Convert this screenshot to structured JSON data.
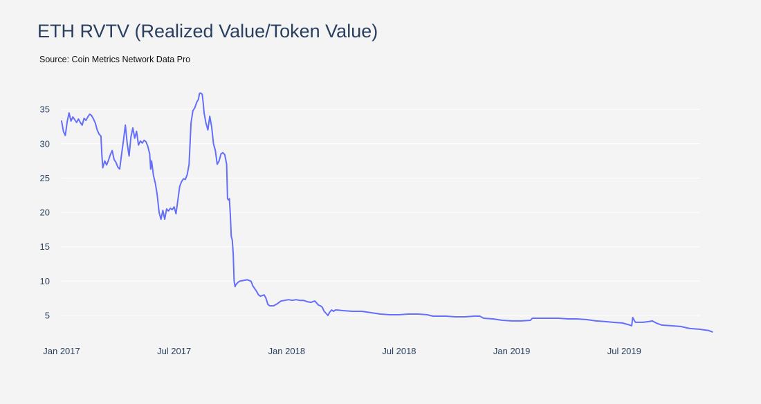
{
  "title": "ETH RVTV (Realized Value/Token Value)",
  "subtitle": "Source: Coin Metrics Network Data Pro",
  "colors": {
    "background": "#f4f4f4",
    "line": "#636efa",
    "grid": "#ffffff",
    "text": "#2a3f5f"
  },
  "chart_data": {
    "type": "line",
    "title": "ETH RVTV (Realized Value/Token Value)",
    "xlabel": "",
    "ylabel": "",
    "ylim": [
      2,
      38
    ],
    "xlim": [
      0,
      34.7
    ],
    "x_unit": "months since Jan 2017",
    "xticks": [
      {
        "x": 0,
        "label": "Jan 2017"
      },
      {
        "x": 6,
        "label": "Jul 2017"
      },
      {
        "x": 12,
        "label": "Jan 2018"
      },
      {
        "x": 18,
        "label": "Jul 2018"
      },
      {
        "x": 24,
        "label": "Jan 2019"
      },
      {
        "x": 30,
        "label": "Jul 2019"
      }
    ],
    "yticks": [
      {
        "y": 5,
        "label": "5"
      },
      {
        "y": 10,
        "label": "10"
      },
      {
        "y": 15,
        "label": "15"
      },
      {
        "y": 20,
        "label": "20"
      },
      {
        "y": 25,
        "label": "25"
      },
      {
        "y": 30,
        "label": "30"
      },
      {
        "y": 35,
        "label": "35"
      }
    ],
    "grid": true,
    "series": [
      {
        "name": "ETH RVTV",
        "points": [
          [
            0.0,
            33.3
          ],
          [
            0.1,
            31.8
          ],
          [
            0.2,
            31.2
          ],
          [
            0.3,
            33.2
          ],
          [
            0.4,
            34.5
          ],
          [
            0.5,
            33.3
          ],
          [
            0.6,
            33.9
          ],
          [
            0.7,
            33.5
          ],
          [
            0.8,
            33.1
          ],
          [
            0.9,
            33.6
          ],
          [
            1.0,
            33.1
          ],
          [
            1.1,
            32.7
          ],
          [
            1.2,
            33.7
          ],
          [
            1.3,
            33.4
          ],
          [
            1.4,
            33.9
          ],
          [
            1.5,
            34.3
          ],
          [
            1.6,
            34.1
          ],
          [
            1.7,
            33.6
          ],
          [
            1.8,
            33.0
          ],
          [
            1.9,
            32.0
          ],
          [
            2.0,
            31.4
          ],
          [
            2.1,
            31.1
          ],
          [
            2.15,
            28.3
          ],
          [
            2.2,
            26.5
          ],
          [
            2.3,
            27.5
          ],
          [
            2.4,
            26.9
          ],
          [
            2.5,
            27.6
          ],
          [
            2.6,
            28.4
          ],
          [
            2.7,
            29.0
          ],
          [
            2.8,
            27.7
          ],
          [
            2.9,
            27.3
          ],
          [
            3.0,
            26.6
          ],
          [
            3.1,
            26.3
          ],
          [
            3.2,
            28.5
          ],
          [
            3.3,
            30.5
          ],
          [
            3.4,
            32.7
          ],
          [
            3.5,
            30.0
          ],
          [
            3.6,
            28.2
          ],
          [
            3.7,
            31.0
          ],
          [
            3.8,
            32.3
          ],
          [
            3.9,
            30.8
          ],
          [
            4.0,
            31.8
          ],
          [
            4.1,
            29.8
          ],
          [
            4.2,
            30.4
          ],
          [
            4.3,
            30.1
          ],
          [
            4.4,
            30.5
          ],
          [
            4.5,
            30.3
          ],
          [
            4.6,
            29.6
          ],
          [
            4.7,
            28.5
          ],
          [
            4.75,
            26.3
          ],
          [
            4.8,
            27.5
          ],
          [
            4.9,
            25.4
          ],
          [
            5.0,
            24.2
          ],
          [
            5.1,
            22.5
          ],
          [
            5.2,
            20.0
          ],
          [
            5.3,
            19.0
          ],
          [
            5.4,
            20.3
          ],
          [
            5.5,
            19.0
          ],
          [
            5.6,
            20.5
          ],
          [
            5.7,
            20.2
          ],
          [
            5.8,
            20.6
          ],
          [
            5.9,
            20.4
          ],
          [
            6.0,
            20.8
          ],
          [
            6.1,
            19.8
          ],
          [
            6.2,
            21.8
          ],
          [
            6.3,
            23.8
          ],
          [
            6.4,
            24.5
          ],
          [
            6.5,
            24.9
          ],
          [
            6.6,
            24.8
          ],
          [
            6.7,
            25.5
          ],
          [
            6.8,
            27.0
          ],
          [
            6.9,
            33.0
          ],
          [
            7.0,
            34.8
          ],
          [
            7.1,
            35.2
          ],
          [
            7.2,
            36.0
          ],
          [
            7.3,
            36.5
          ],
          [
            7.35,
            37.3
          ],
          [
            7.4,
            37.4
          ],
          [
            7.5,
            37.2
          ],
          [
            7.55,
            36.0
          ],
          [
            7.6,
            34.5
          ],
          [
            7.7,
            33.0
          ],
          [
            7.8,
            32.0
          ],
          [
            7.9,
            34.0
          ],
          [
            8.0,
            32.5
          ],
          [
            8.1,
            30.0
          ],
          [
            8.2,
            29.0
          ],
          [
            8.3,
            27.0
          ],
          [
            8.4,
            27.5
          ],
          [
            8.5,
            28.5
          ],
          [
            8.6,
            28.7
          ],
          [
            8.7,
            28.4
          ],
          [
            8.8,
            27.0
          ],
          [
            8.85,
            22.0
          ],
          [
            8.9,
            21.8
          ],
          [
            8.95,
            22.0
          ],
          [
            9.0,
            19.5
          ],
          [
            9.05,
            16.5
          ],
          [
            9.1,
            16.0
          ],
          [
            9.15,
            14.0
          ],
          [
            9.2,
            10.0
          ],
          [
            9.25,
            9.2
          ],
          [
            9.3,
            9.5
          ],
          [
            9.4,
            9.8
          ],
          [
            9.5,
            10.0
          ],
          [
            9.7,
            10.1
          ],
          [
            9.9,
            10.2
          ],
          [
            10.1,
            10.0
          ],
          [
            10.2,
            9.3
          ],
          [
            10.4,
            8.5
          ],
          [
            10.5,
            8.0
          ],
          [
            10.6,
            7.8
          ],
          [
            10.7,
            7.9
          ],
          [
            10.8,
            8.0
          ],
          [
            10.9,
            7.5
          ],
          [
            11.0,
            6.6
          ],
          [
            11.1,
            6.4
          ],
          [
            11.3,
            6.4
          ],
          [
            11.5,
            6.7
          ],
          [
            11.7,
            7.1
          ],
          [
            11.9,
            7.2
          ],
          [
            12.1,
            7.3
          ],
          [
            12.3,
            7.2
          ],
          [
            12.5,
            7.3
          ],
          [
            12.7,
            7.2
          ],
          [
            12.9,
            7.2
          ],
          [
            13.1,
            7.0
          ],
          [
            13.3,
            6.9
          ],
          [
            13.5,
            7.1
          ],
          [
            13.6,
            6.8
          ],
          [
            13.7,
            6.5
          ],
          [
            13.8,
            6.4
          ],
          [
            13.9,
            6.2
          ],
          [
            14.0,
            5.6
          ],
          [
            14.1,
            5.3
          ],
          [
            14.2,
            5.0
          ],
          [
            14.3,
            5.5
          ],
          [
            14.4,
            5.8
          ],
          [
            14.5,
            5.6
          ],
          [
            14.6,
            5.8
          ],
          [
            14.7,
            5.8
          ],
          [
            15.0,
            5.7
          ],
          [
            15.5,
            5.6
          ],
          [
            16.0,
            5.6
          ],
          [
            16.5,
            5.4
          ],
          [
            17.0,
            5.2
          ],
          [
            17.5,
            5.1
          ],
          [
            18.0,
            5.1
          ],
          [
            18.5,
            5.2
          ],
          [
            19.0,
            5.2
          ],
          [
            19.5,
            5.1
          ],
          [
            19.8,
            4.9
          ],
          [
            20.0,
            4.9
          ],
          [
            20.5,
            4.9
          ],
          [
            21.0,
            4.8
          ],
          [
            21.5,
            4.8
          ],
          [
            22.0,
            4.9
          ],
          [
            22.3,
            4.9
          ],
          [
            22.5,
            4.6
          ],
          [
            23.0,
            4.5
          ],
          [
            23.5,
            4.3
          ],
          [
            24.0,
            4.2
          ],
          [
            24.5,
            4.2
          ],
          [
            25.0,
            4.3
          ],
          [
            25.1,
            4.6
          ],
          [
            25.5,
            4.6
          ],
          [
            26.0,
            4.6
          ],
          [
            26.5,
            4.6
          ],
          [
            27.0,
            4.5
          ],
          [
            27.5,
            4.5
          ],
          [
            28.0,
            4.4
          ],
          [
            28.5,
            4.2
          ],
          [
            29.0,
            4.1
          ],
          [
            29.4,
            4.0
          ],
          [
            29.9,
            3.9
          ],
          [
            30.3,
            3.6
          ],
          [
            30.4,
            3.5
          ],
          [
            30.45,
            4.7
          ],
          [
            30.55,
            4.2
          ],
          [
            30.6,
            4.0
          ],
          [
            31.0,
            4.0
          ],
          [
            31.3,
            4.1
          ],
          [
            31.5,
            4.2
          ],
          [
            31.7,
            3.9
          ],
          [
            32.0,
            3.6
          ],
          [
            32.5,
            3.5
          ],
          [
            33.0,
            3.4
          ],
          [
            33.5,
            3.1
          ],
          [
            34.0,
            3.0
          ],
          [
            34.5,
            2.8
          ],
          [
            34.7,
            2.6
          ]
        ]
      }
    ]
  }
}
